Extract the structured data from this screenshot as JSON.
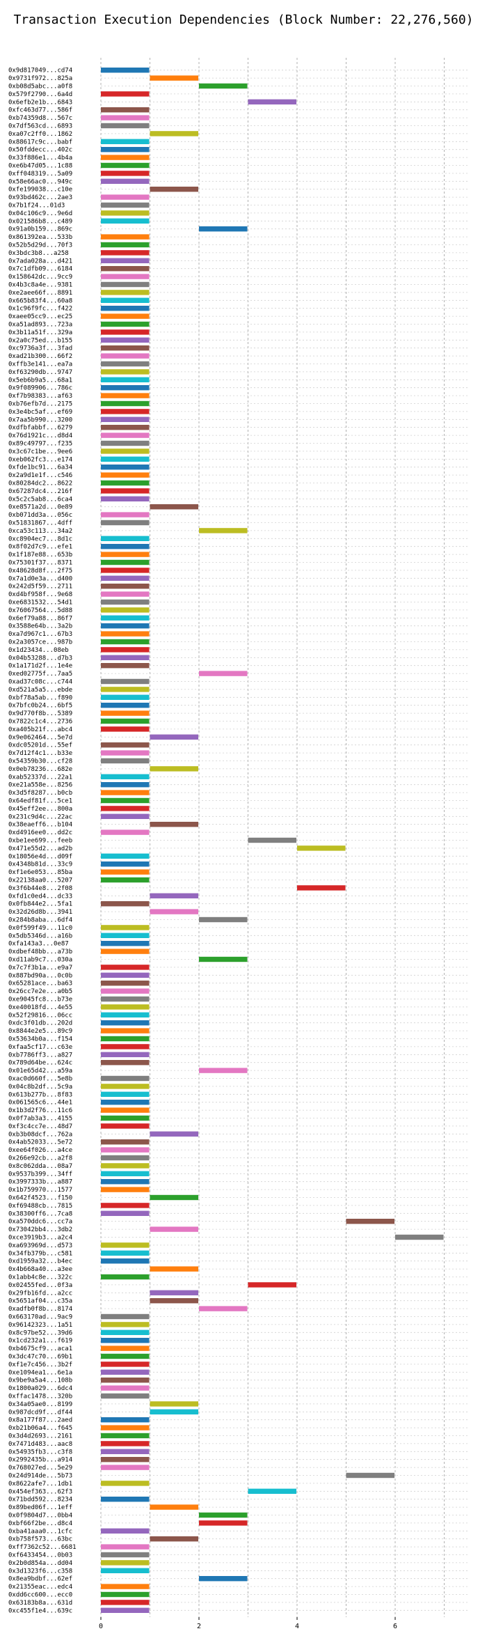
{
  "chart_data": {
    "type": "bar",
    "orientation": "horizontal",
    "title": "Transaction Execution Dependencies (Block Number: 22,276,560)",
    "xlabel": "",
    "ylabel": "",
    "xlim": [
      0,
      7.4
    ],
    "xticks": [
      0,
      2,
      4,
      6
    ],
    "grid": true,
    "legend": "none",
    "colors": [
      "#1f77b4",
      "#ff7f0e",
      "#2ca02c",
      "#d62728",
      "#9467bd",
      "#8c564b",
      "#e377c2",
      "#7f7f7f",
      "#bcbd22",
      "#17becf"
    ],
    "transactions": [
      {
        "label": "0x9d817049...cd74",
        "start": 0
      },
      {
        "label": "0x9731f972...825a",
        "start": 1
      },
      {
        "label": "0xb08d5abc...a0f8",
        "start": 2
      },
      {
        "label": "0x579f2790...6a4d",
        "start": 0
      },
      {
        "label": "0x6efb2e1b...6843",
        "start": 3
      },
      {
        "label": "0xfc463d77...586f",
        "start": 0
      },
      {
        "label": "0xb74359d8...567c",
        "start": 0
      },
      {
        "label": "0x7df563cd...6893",
        "start": 0
      },
      {
        "label": "0xa07c2ff0...1862",
        "start": 1
      },
      {
        "label": "0x88617c9c...babf",
        "start": 0
      },
      {
        "label": "0x50fddecc...402c",
        "start": 0
      },
      {
        "label": "0x33f886e1...4b4a",
        "start": 0
      },
      {
        "label": "0xe6b47d05...1c88",
        "start": 0
      },
      {
        "label": "0xff048319...5a09",
        "start": 0
      },
      {
        "label": "0x58e66ac0...949c",
        "start": 0
      },
      {
        "label": "0xfe199038...c10e",
        "start": 1
      },
      {
        "label": "0x93bd462c...2ae3",
        "start": 0
      },
      {
        "label": "0x7b1f24...01d3",
        "start": 0
      },
      {
        "label": "0x04c106c9...9e6d",
        "start": 0
      },
      {
        "label": "0x021586b8...c489",
        "start": 0
      },
      {
        "label": "0x91a0b159...869c",
        "start": 2
      },
      {
        "label": "0x861392ea...533b",
        "start": 0
      },
      {
        "label": "0x52b5d29d...70f3",
        "start": 0
      },
      {
        "label": "0x3bdc3b8...a258",
        "start": 0
      },
      {
        "label": "0x7ada028a...d421",
        "start": 0
      },
      {
        "label": "0x7c1dfb09...6184",
        "start": 0
      },
      {
        "label": "0x158642dc...9cc9",
        "start": 0
      },
      {
        "label": "0x4b3c8a4e...9381",
        "start": 0
      },
      {
        "label": "0xe2aee66f...8891",
        "start": 0
      },
      {
        "label": "0x665b83f4...60a8",
        "start": 0
      },
      {
        "label": "0x1c96f9fc...f422",
        "start": 0
      },
      {
        "label": "0xaee05cc9...ec25",
        "start": 0
      },
      {
        "label": "0xa51ad893...723a",
        "start": 0
      },
      {
        "label": "0x3b11a51f...329a",
        "start": 0
      },
      {
        "label": "0x2a0c75ed...b155",
        "start": 0
      },
      {
        "label": "0xc9736a3f...3fad",
        "start": 0
      },
      {
        "label": "0xad21b300...66f2",
        "start": 0
      },
      {
        "label": "0xffb3e141...ea7a",
        "start": 0
      },
      {
        "label": "0xf63290db...9747",
        "start": 0
      },
      {
        "label": "0x5eb6b9a5...68a1",
        "start": 0
      },
      {
        "label": "0x9f089906...786c",
        "start": 0
      },
      {
        "label": "0xf7b98383...af63",
        "start": 0
      },
      {
        "label": "0xb76efb7d...2175",
        "start": 0
      },
      {
        "label": "0x3e4bc5af...ef69",
        "start": 0
      },
      {
        "label": "0x7aa5b990...3200",
        "start": 0
      },
      {
        "label": "0xdfbfabbf...6279",
        "start": 0
      },
      {
        "label": "0x76d1921c...d8d4",
        "start": 0
      },
      {
        "label": "0x89c49797...f235",
        "start": 0
      },
      {
        "label": "0x3c67c1be...9ee6",
        "start": 0
      },
      {
        "label": "0xeb062fc3...e174",
        "start": 0
      },
      {
        "label": "0xfde1bc91...6a34",
        "start": 0
      },
      {
        "label": "0x2a9d1e1f...c546",
        "start": 0
      },
      {
        "label": "0x80284dc2...8622",
        "start": 0
      },
      {
        "label": "0x67287dc4...216f",
        "start": 0
      },
      {
        "label": "0x5c2c5ab8...6ca4",
        "start": 0
      },
      {
        "label": "0xe8571a2d...0e89",
        "start": 1
      },
      {
        "label": "0xb071dd3a...056c",
        "start": 0
      },
      {
        "label": "0x51831867...4dff",
        "start": 0
      },
      {
        "label": "0xca53c113...34a2",
        "start": 2
      },
      {
        "label": "0xc8904ec7...8d1c",
        "start": 0
      },
      {
        "label": "0x8f02d7c9...efe1",
        "start": 0
      },
      {
        "label": "0x1f187e88...653b",
        "start": 0
      },
      {
        "label": "0x75301f37...8371",
        "start": 0
      },
      {
        "label": "0x48628d8f...2f75",
        "start": 0
      },
      {
        "label": "0x7a1d0e3a...d400",
        "start": 0
      },
      {
        "label": "0x242d5f59...2711",
        "start": 0
      },
      {
        "label": "0xd4bf958f...9e68",
        "start": 0
      },
      {
        "label": "0xe6831532...54d1",
        "start": 0
      },
      {
        "label": "0x76067564...5d88",
        "start": 0
      },
      {
        "label": "0x6ef79a88...86f7",
        "start": 0
      },
      {
        "label": "0x3588e64b...3a2b",
        "start": 0
      },
      {
        "label": "0xa7d967c1...67b3",
        "start": 0
      },
      {
        "label": "0x2a3057ce...987b",
        "start": 0
      },
      {
        "label": "0x1d23434...08eb",
        "start": 0
      },
      {
        "label": "0x04b53288...d7b3",
        "start": 0
      },
      {
        "label": "0x1a171d2f...1e4e",
        "start": 0
      },
      {
        "label": "0xed02775f...7aa5",
        "start": 2
      },
      {
        "label": "0xad37c08c...c744",
        "start": 0
      },
      {
        "label": "0xd521a5a5...ebde",
        "start": 0
      },
      {
        "label": "0xbf78a5ab...f890",
        "start": 0
      },
      {
        "label": "0x7bfc0b24...6bf5",
        "start": 0
      },
      {
        "label": "0x9d770f8b...5389",
        "start": 0
      },
      {
        "label": "0x7822c1c4...2736",
        "start": 0
      },
      {
        "label": "0xa405b21f...abc4",
        "start": 0
      },
      {
        "label": "0x9e062464...5e7d",
        "start": 1
      },
      {
        "label": "0xdc05201d...55ef",
        "start": 0
      },
      {
        "label": "0x7d12f4c1...b33e",
        "start": 0
      },
      {
        "label": "0x54359b30...cf28",
        "start": 0
      },
      {
        "label": "0x0eb78236...682e",
        "start": 1
      },
      {
        "label": "0xab52337d...22a1",
        "start": 0
      },
      {
        "label": "0xe21a558e...8256",
        "start": 0
      },
      {
        "label": "0x3d5f8287...b0cb",
        "start": 0
      },
      {
        "label": "0x64edf81f...5ce1",
        "start": 0
      },
      {
        "label": "0x45eff2ee...800a",
        "start": 0
      },
      {
        "label": "0x231c9d4c...22ac",
        "start": 0
      },
      {
        "label": "0x38eaeff6...b104",
        "start": 1
      },
      {
        "label": "0xd4916ee0...dd2c",
        "start": 0
      },
      {
        "label": "0xbe1ee699...feeb",
        "start": 3
      },
      {
        "label": "0x471e55d2...ad2b",
        "start": 4
      },
      {
        "label": "0x18056e4d...d09f",
        "start": 0
      },
      {
        "label": "0x4348b81d...33c9",
        "start": 0
      },
      {
        "label": "0xf1e6e053...85ba",
        "start": 0
      },
      {
        "label": "0x22138aa0...5207",
        "start": 0
      },
      {
        "label": "0x3f6b44e8...2f08",
        "start": 4
      },
      {
        "label": "0xfd1c0ed4...dc33",
        "start": 1
      },
      {
        "label": "0x0fb844e2...5fa1",
        "start": 0
      },
      {
        "label": "0x32d26d8b...3941",
        "start": 1
      },
      {
        "label": "0x284b8aba...6df4",
        "start": 2
      },
      {
        "label": "0x0f599f49...11c0",
        "start": 0
      },
      {
        "label": "0x5db5346d...a16b",
        "start": 0
      },
      {
        "label": "0xfa143a3...0e87",
        "start": 0
      },
      {
        "label": "0xdbef48bb...a73b",
        "start": 0
      },
      {
        "label": "0xd11ab9c7...030a",
        "start": 2
      },
      {
        "label": "0x7c7f3b1a...e9a7",
        "start": 0
      },
      {
        "label": "0x887bd90a...0c0b",
        "start": 0
      },
      {
        "label": "0x65281ace...ba63",
        "start": 0
      },
      {
        "label": "0x26cc7e2e...a0b5",
        "start": 0
      },
      {
        "label": "0xe9045fc8...b73e",
        "start": 0
      },
      {
        "label": "0xe40018fd...4e55",
        "start": 0
      },
      {
        "label": "0x52f29816...06cc",
        "start": 0
      },
      {
        "label": "0xdc3f01db...202d",
        "start": 0
      },
      {
        "label": "0x8844e2e5...89c9",
        "start": 0
      },
      {
        "label": "0x53634b0a...f154",
        "start": 0
      },
      {
        "label": "0xfaa5cf17...c63e",
        "start": 0
      },
      {
        "label": "0xb7786ff3...a827",
        "start": 0
      },
      {
        "label": "0x789d64be...624c",
        "start": 0
      },
      {
        "label": "0x01e65d42...a59a",
        "start": 2
      },
      {
        "label": "0xac0d660f...5e8b",
        "start": 0
      },
      {
        "label": "0x04c8b2df...5c9a",
        "start": 0
      },
      {
        "label": "0x613b277b...8f83",
        "start": 0
      },
      {
        "label": "0x061565c6...44e1",
        "start": 0
      },
      {
        "label": "0x1b3d2f76...11c6",
        "start": 0
      },
      {
        "label": "0x0f7ab3a3...4155",
        "start": 0
      },
      {
        "label": "0xf3c4cc7e...48d7",
        "start": 0
      },
      {
        "label": "0xb3b08dcf...762a",
        "start": 1
      },
      {
        "label": "0x4ab52033...5e72",
        "start": 0
      },
      {
        "label": "0xee64f026...a4ce",
        "start": 0
      },
      {
        "label": "0x266e92cb...a2f8",
        "start": 0
      },
      {
        "label": "0x8c062dda...08a7",
        "start": 0
      },
      {
        "label": "0x9537b399...34ff",
        "start": 0
      },
      {
        "label": "0x3997333b...a887",
        "start": 0
      },
      {
        "label": "0x1b759970...1577",
        "start": 0
      },
      {
        "label": "0x642f4523...f150",
        "start": 1
      },
      {
        "label": "0xf69488cb...7815",
        "start": 0
      },
      {
        "label": "0x38300ff6...7ca8",
        "start": 0
      },
      {
        "label": "0xa570ddc6...cc7a",
        "start": 5
      },
      {
        "label": "0x73042bb4...3db2",
        "start": 1
      },
      {
        "label": "0xce3919b3...a2c4",
        "start": 6
      },
      {
        "label": "0xa693969d...d573",
        "start": 0
      },
      {
        "label": "0x34fb379b...c581",
        "start": 0
      },
      {
        "label": "0xd1959a32...b4ec",
        "start": 0
      },
      {
        "label": "0x4b668a40...a3ee",
        "start": 1
      },
      {
        "label": "0x1abb4c8e...322c",
        "start": 0
      },
      {
        "label": "0x02455fed...0f3a",
        "start": 3
      },
      {
        "label": "0x29fb16fd...a2cc",
        "start": 1
      },
      {
        "label": "0x5651af04...c35a",
        "start": 1
      },
      {
        "label": "0xadfb0f8b...8174",
        "start": 2
      },
      {
        "label": "0x663170ad...9ac9",
        "start": 0
      },
      {
        "label": "0x96142323...1a51",
        "start": 0
      },
      {
        "label": "0x8c97be52...39d6",
        "start": 0
      },
      {
        "label": "0x1cd232a1...f619",
        "start": 0
      },
      {
        "label": "0xb4675cf9...aca1",
        "start": 0
      },
      {
        "label": "0x3dc47c70...69b1",
        "start": 0
      },
      {
        "label": "0xf1e7c456...3b2f",
        "start": 0
      },
      {
        "label": "0xe1094ea1...6e1a",
        "start": 0
      },
      {
        "label": "0x9be9a5a4...108b",
        "start": 0
      },
      {
        "label": "0x1800a029...6dc4",
        "start": 0
      },
      {
        "label": "0xffac1478...320b",
        "start": 0
      },
      {
        "label": "0x34a05ae0...8199",
        "start": 1
      },
      {
        "label": "0x987dcd9f...df44",
        "start": 1
      },
      {
        "label": "0x8a177f87...2aed",
        "start": 0
      },
      {
        "label": "0xb21b06a4...f645",
        "start": 0
      },
      {
        "label": "0x3d4d2693...2161",
        "start": 0
      },
      {
        "label": "0x7471d483...aac8",
        "start": 0
      },
      {
        "label": "0x54935fb3...c3f8",
        "start": 0
      },
      {
        "label": "0x2992435b...a914",
        "start": 0
      },
      {
        "label": "0x768027ed...5e29",
        "start": 0
      },
      {
        "label": "0x24d914de...5b73",
        "start": 5
      },
      {
        "label": "0x8622afe7...1db1",
        "start": 0
      },
      {
        "label": "0x454ef363...62f3",
        "start": 3
      },
      {
        "label": "0x71bdd592...8234",
        "start": 0
      },
      {
        "label": "0x89bed06f...1eff",
        "start": 1
      },
      {
        "label": "0x0f9804d7...0bb4",
        "start": 2
      },
      {
        "label": "0xbf66f2be...d8c4",
        "start": 2
      },
      {
        "label": "0xba41aaa0...1cfc",
        "start": 0
      },
      {
        "label": "0xb758f573...63bc",
        "start": 1
      },
      {
        "label": "0xff7362c52...6681",
        "start": 0
      },
      {
        "label": "0xf6433454...0b03",
        "start": 0
      },
      {
        "label": "0x2b0d854a...dd04",
        "start": 0
      },
      {
        "label": "0x3d1323f6...c358",
        "start": 0
      },
      {
        "label": "0x8ea9bdbf...62ef",
        "start": 2
      },
      {
        "label": "0x21355eac...edc4",
        "start": 0
      },
      {
        "label": "0xdd6cc600...ecc0",
        "start": 0
      },
      {
        "label": "0x63183b8a...631d",
        "start": 0
      },
      {
        "label": "0xc455f1e4...639c",
        "start": 0
      }
    ]
  }
}
